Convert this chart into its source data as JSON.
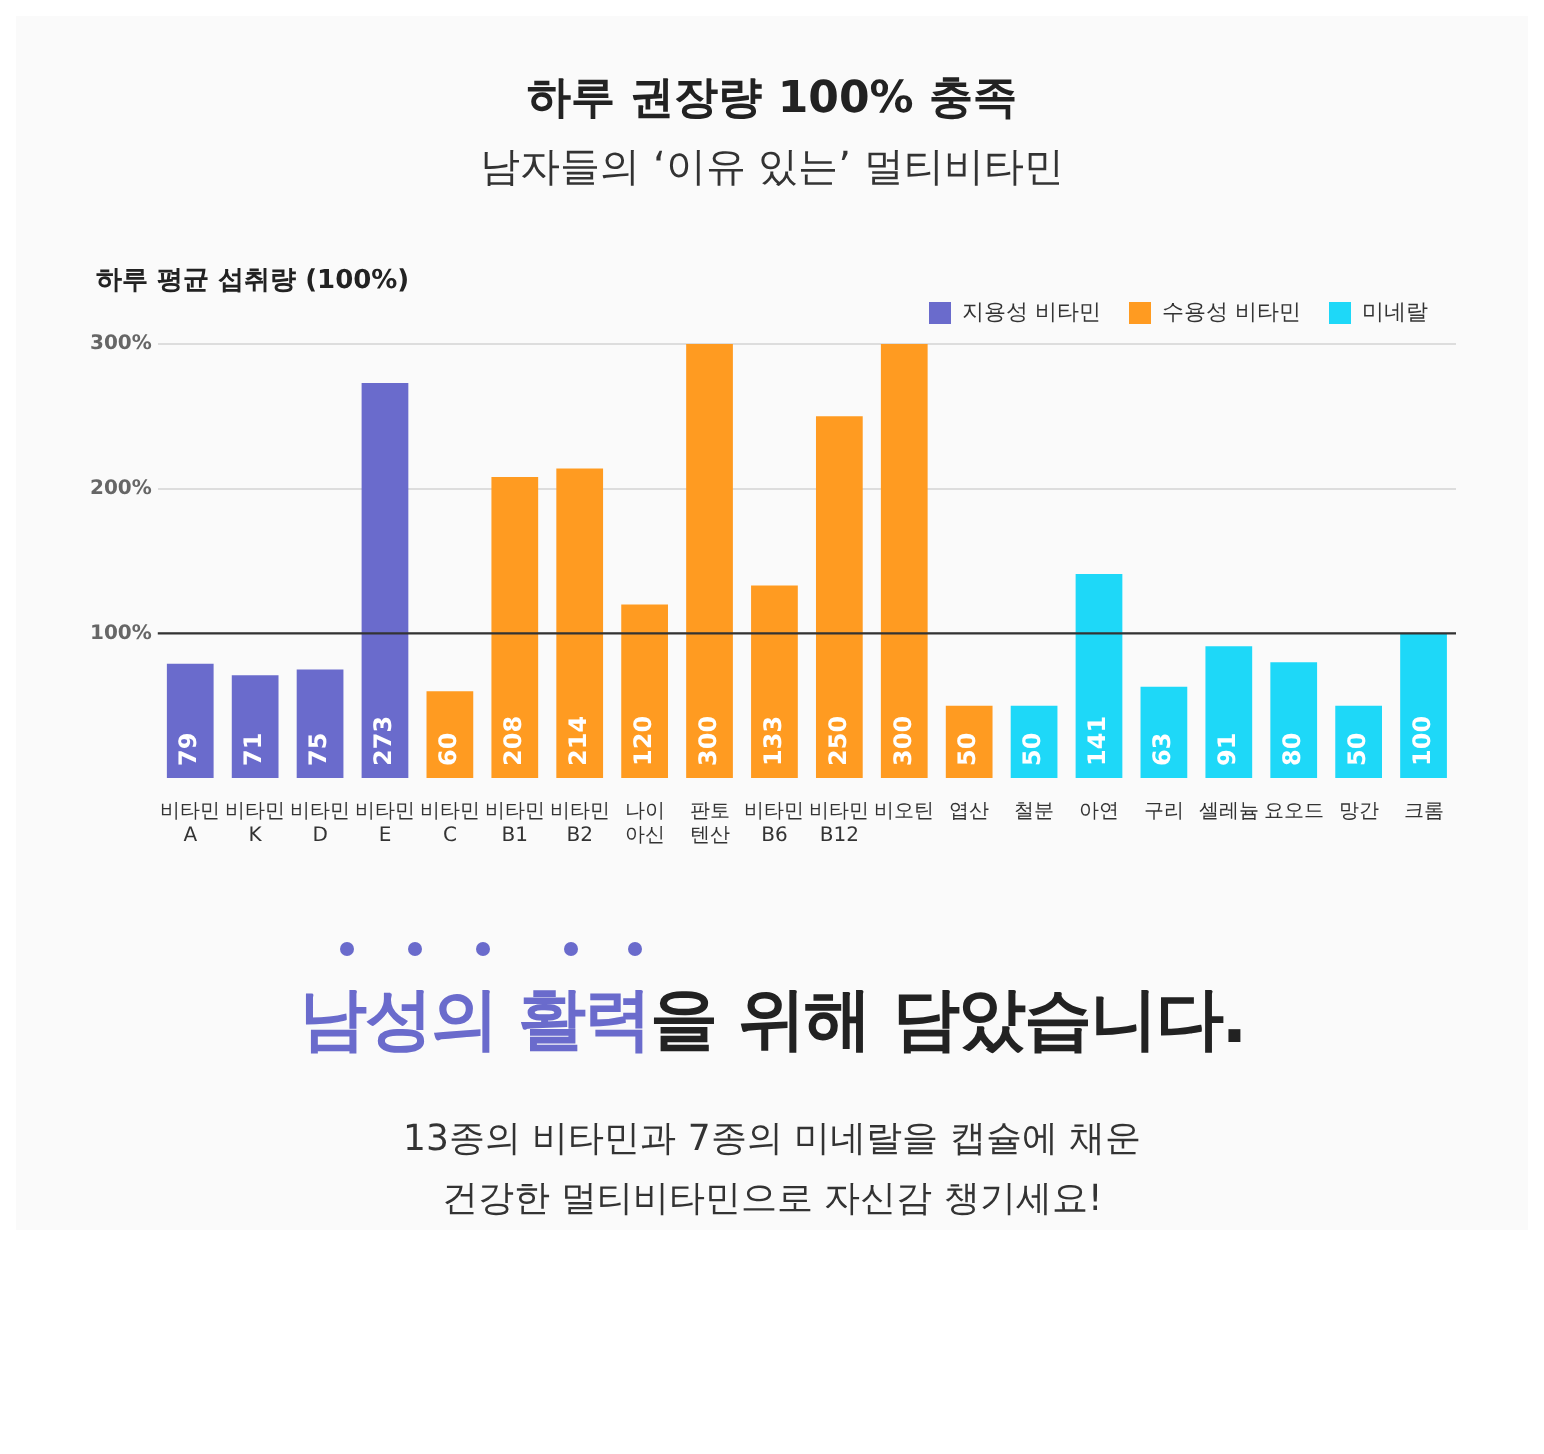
{
  "chart_data": {
    "type": "bar",
    "title": "하루 권장량 100% 충족",
    "subtitle": "남자들의 ‘이유 있는’ 멀티비타민",
    "ylabel": "하루 평균 섭취량 (100%)",
    "categories": [
      "비타민 A",
      "비타민 K",
      "비타민 D",
      "비타민 E",
      "비타민 C",
      "비타민 B1",
      "비타민 B2",
      "나이 아신",
      "판토 텐산",
      "비타민 B6",
      "비타민 B12",
      "비오틴",
      "엽산",
      "철분",
      "아연",
      "구리",
      "셀레늄",
      "요오드",
      "망간",
      "크롬"
    ],
    "series": [
      {
        "name": "지용성 비타민",
        "color": "#6a6bcc",
        "values": [
          79,
          71,
          75,
          273,
          null,
          null,
          null,
          null,
          null,
          null,
          null,
          null,
          null,
          null,
          null,
          null,
          null,
          null,
          null,
          null
        ]
      },
      {
        "name": "수용성 비타민",
        "color": "#ff9b21",
        "values": [
          null,
          null,
          null,
          null,
          60,
          208,
          214,
          120,
          300,
          133,
          250,
          300,
          50,
          null,
          null,
          null,
          null,
          null,
          null,
          null
        ]
      },
      {
        "name": "미네랄",
        "color": "#1ed8f8",
        "values": [
          null,
          null,
          null,
          null,
          null,
          null,
          null,
          null,
          null,
          null,
          null,
          null,
          null,
          50,
          141,
          63,
          91,
          80,
          50,
          100
        ]
      }
    ],
    "ylim": [
      0,
      300
    ],
    "yticks": [
      {
        "value": 100,
        "label": "100%"
      },
      {
        "value": 200,
        "label": "200%"
      },
      {
        "value": 300,
        "label": "300%"
      }
    ],
    "grid": "y",
    "legend": "top right",
    "data_labels": true,
    "ref_lines": [
      {
        "axis": "y",
        "value": 100,
        "color": "#333333"
      }
    ],
    "annotations": [
      "남성의 활력",
      "을 위해 담았습니다.",
      "13종의 비타민과 7종의 미네랄을 캡슐에 채운",
      "건강한 멀티비타민으로 자신감 챙기세요!"
    ]
  }
}
